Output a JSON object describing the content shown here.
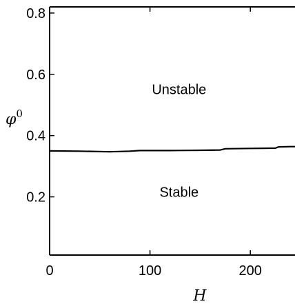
{
  "chart_data": {
    "type": "line",
    "title": "",
    "xlabel": "H",
    "ylabel": "φ",
    "ylabel_superscript": "0",
    "xlim": [
      0,
      250
    ],
    "ylim": [
      0.01,
      0.82
    ],
    "grid": false,
    "legend": "none",
    "x_ticks": [
      {
        "value": 0,
        "label": "0"
      },
      {
        "value": 100,
        "label": "100"
      },
      {
        "value": 200,
        "label": "200"
      }
    ],
    "y_ticks": [
      {
        "value": 0.2,
        "label": "0.2"
      },
      {
        "value": 0.4,
        "label": "0.4"
      },
      {
        "value": 0.6,
        "label": "0.6"
      },
      {
        "value": 0.8,
        "label": "0.8"
      }
    ],
    "annotations": [
      {
        "text": "Unstable",
        "x": 129,
        "y": 0.535
      },
      {
        "text": "Stable",
        "x": 129,
        "y": 0.2
      }
    ],
    "series": [
      {
        "color": "#000000",
        "x": [
          0,
          30,
          60,
          80,
          90,
          120,
          150,
          170,
          175,
          200,
          225,
          228,
          240,
          250
        ],
        "y": [
          0.35,
          0.349,
          0.347,
          0.349,
          0.351,
          0.351,
          0.352,
          0.353,
          0.357,
          0.358,
          0.359,
          0.363,
          0.364,
          0.364
        ]
      }
    ]
  }
}
